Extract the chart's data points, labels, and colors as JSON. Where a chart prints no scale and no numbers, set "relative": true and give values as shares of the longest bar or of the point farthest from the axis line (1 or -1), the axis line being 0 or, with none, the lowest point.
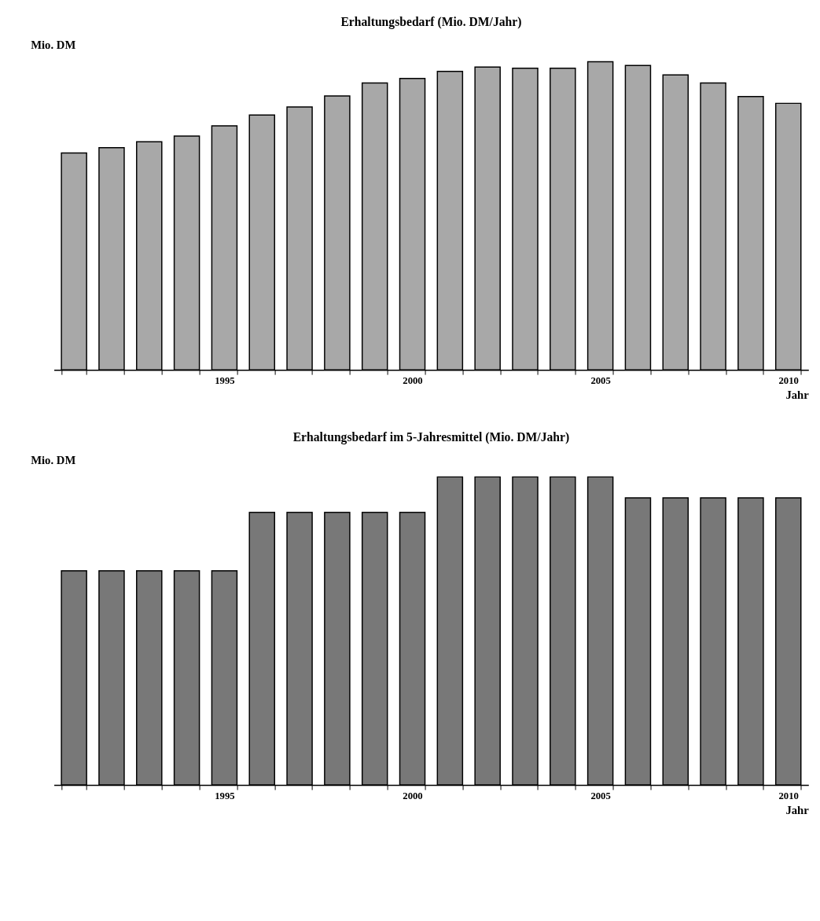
{
  "chart_data": [
    {
      "type": "bar",
      "title": "Erhaltungsbedarf (Mio. DM/Jahr)",
      "ylabel": "Mio. DM",
      "xlabel": "Jahr",
      "relative": true,
      "color": "#a8a8a8",
      "categories": [
        null,
        null,
        null,
        null,
        "1995",
        null,
        null,
        null,
        null,
        "2000",
        null,
        null,
        null,
        null,
        "2005",
        null,
        null,
        null,
        null,
        "2010"
      ],
      "values": [
        0.704,
        0.721,
        0.74,
        0.759,
        0.792,
        0.827,
        0.853,
        0.889,
        0.931,
        0.946,
        0.969,
        0.983,
        0.979,
        0.979,
        1,
        0.988,
        0.957,
        0.931,
        0.887,
        0.865
      ]
    },
    {
      "type": "bar",
      "title": "Erhaltungsbedarf im 5-Jahresmittel (Mio. DM/Jahr)",
      "ylabel": "Mio. DM",
      "xlabel": "Jahr",
      "relative": true,
      "color": "#787878",
      "categories": [
        null,
        null,
        null,
        null,
        "1995",
        null,
        null,
        null,
        null,
        "2000",
        null,
        null,
        null,
        null,
        "2005",
        null,
        null,
        null,
        null,
        "2010"
      ],
      "values": [
        0.695,
        0.695,
        0.695,
        0.695,
        0.695,
        0.885,
        0.885,
        0.885,
        0.885,
        0.885,
        1,
        1,
        1,
        1,
        1,
        0.932,
        0.932,
        0.932,
        0.932,
        0.932
      ]
    }
  ]
}
